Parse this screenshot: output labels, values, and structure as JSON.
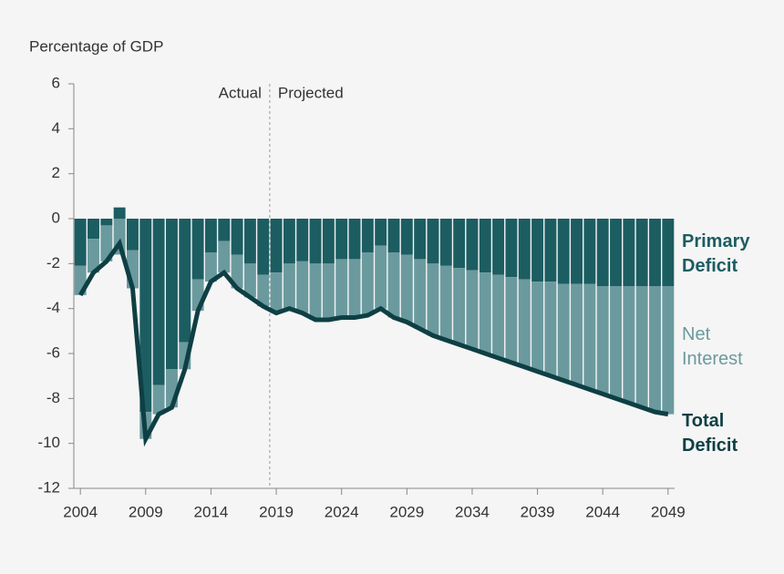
{
  "chart_data": {
    "type": "bar-line",
    "y_axis_label": "Percentage of GDP",
    "annotations": [
      "Actual",
      "Projected"
    ],
    "divider_x": 2018.5,
    "x": [
      2004,
      2005,
      2006,
      2007,
      2008,
      2009,
      2010,
      2011,
      2012,
      2013,
      2014,
      2015,
      2016,
      2017,
      2018,
      2019,
      2020,
      2021,
      2022,
      2023,
      2024,
      2025,
      2026,
      2027,
      2028,
      2029,
      2030,
      2031,
      2032,
      2033,
      2034,
      2035,
      2036,
      2037,
      2038,
      2039,
      2040,
      2041,
      2042,
      2043,
      2044,
      2045,
      2046,
      2047,
      2048,
      2049
    ],
    "series": [
      {
        "name": "Primary Deficit",
        "color": "#1c5d62",
        "kind": "bar",
        "values": [
          -2.1,
          -0.9,
          -0.3,
          0.5,
          -1.4,
          -8.6,
          -7.4,
          -6.7,
          -5.5,
          -2.7,
          -1.5,
          -1.0,
          -1.6,
          -2.0,
          -2.5,
          -2.4,
          -2.0,
          -1.9,
          -2.0,
          -2.0,
          -1.8,
          -1.8,
          -1.5,
          -1.2,
          -1.5,
          -1.6,
          -1.8,
          -2.0,
          -2.1,
          -2.2,
          -2.3,
          -2.4,
          -2.5,
          -2.6,
          -2.7,
          -2.8,
          -2.8,
          -2.9,
          -2.9,
          -2.9,
          -3.0,
          -3.0,
          -3.0,
          -3.0,
          -3.0,
          -3.0
        ]
      },
      {
        "name": "Net Interest",
        "color": "#6b9a9e",
        "kind": "bar",
        "values": [
          -1.3,
          -1.5,
          -1.6,
          -1.6,
          -1.7,
          -1.2,
          -1.3,
          -1.7,
          -1.2,
          -1.4,
          -1.3,
          -1.4,
          -1.5,
          -1.5,
          -1.4,
          -1.8,
          -2.0,
          -2.3,
          -2.5,
          -2.5,
          -2.6,
          -2.6,
          -2.8,
          -2.8,
          -2.9,
          -3.0,
          -3.1,
          -3.2,
          -3.3,
          -3.4,
          -3.5,
          -3.6,
          -3.7,
          -3.8,
          -3.9,
          -4.0,
          -4.2,
          -4.3,
          -4.5,
          -4.7,
          -4.8,
          -5.0,
          -5.2,
          -5.4,
          -5.6,
          -5.7
        ]
      },
      {
        "name": "Total Deficit",
        "color": "#0e3f44",
        "kind": "line",
        "values": [
          -3.4,
          -2.4,
          -1.9,
          -1.1,
          -3.1,
          -9.8,
          -8.7,
          -8.4,
          -6.7,
          -4.1,
          -2.8,
          -2.4,
          -3.1,
          -3.5,
          -3.9,
          -4.2,
          -4.0,
          -4.2,
          -4.5,
          -4.5,
          -4.4,
          -4.4,
          -4.3,
          -4.0,
          -4.4,
          -4.6,
          -4.9,
          -5.2,
          -5.4,
          -5.6,
          -5.8,
          -6.0,
          -6.2,
          -6.4,
          -6.6,
          -6.8,
          -7.0,
          -7.2,
          -7.4,
          -7.6,
          -7.8,
          -8.0,
          -8.2,
          -8.4,
          -8.6,
          -8.7
        ]
      }
    ],
    "xlim": [
      2003.5,
      2049.5
    ],
    "xticks": [
      2004,
      2009,
      2014,
      2019,
      2024,
      2029,
      2034,
      2039,
      2044,
      2049
    ],
    "ylim": [
      -12,
      6
    ],
    "yticks": [
      -12,
      -10,
      -8,
      -6,
      -4,
      -2,
      0,
      2,
      4,
      6
    ]
  }
}
